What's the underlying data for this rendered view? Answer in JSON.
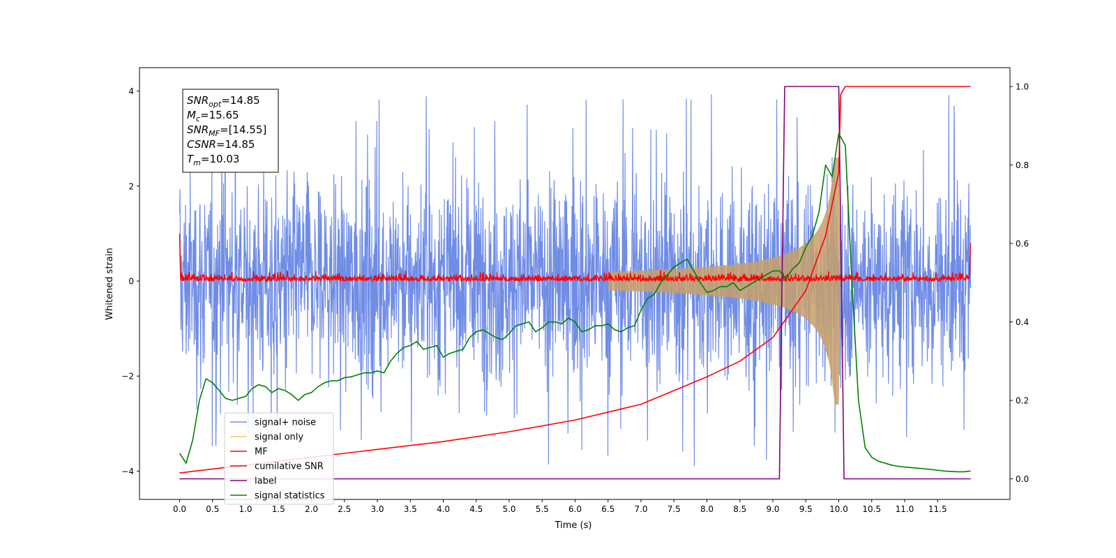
{
  "chart_data": {
    "type": "line",
    "xlabel": "Time (s)",
    "ylabel": "Whitened strain",
    "xlim": [
      -0.6,
      12.6
    ],
    "ylim": [
      -4.55,
      4.5
    ],
    "y2lim": [
      -0.05,
      1.04
    ],
    "xticks": [
      "0.0",
      "0.5",
      "1.0",
      "1.5",
      "2.0",
      "2.5",
      "3.0",
      "3.5",
      "4.0",
      "4.5",
      "5.0",
      "5.5",
      "6.0",
      "6.5",
      "7.0",
      "7.5",
      "8.0",
      "8.5",
      "9.0",
      "9.5",
      "10.0",
      "10.5",
      "11.0",
      "11.5"
    ],
    "yticks_left": [
      "4",
      "2",
      "0",
      "−2",
      "−4"
    ],
    "yticks_right": [
      "1.0",
      "0.8",
      "0.6",
      "0.4",
      "0.2",
      "0.0"
    ],
    "grid": false,
    "legend_position": "lower-left",
    "annotation_box": {
      "lines": [
        {
          "sym": "SNR",
          "sub": "opt",
          "val": "=14.85"
        },
        {
          "sym": "M",
          "sub": "c",
          "val": "=15.65"
        },
        {
          "sym": "SNR",
          "sub": "MF",
          "val": "=[14.55]"
        },
        {
          "sym": "CSNR",
          "sub": "",
          "val": "=14.85"
        },
        {
          "sym": "T",
          "sub": "m",
          "val": "=10.03"
        }
      ]
    },
    "series": [
      {
        "name": "signal+ noise",
        "color": "#6f8ce6",
        "axis": "left",
        "description": "whitened noise, amplitude ~±2.5 with peaks to 4.1"
      },
      {
        "name": "signal only",
        "color": "#f6c56a",
        "axis": "left",
        "chirp_peak_time": 10.0,
        "chirp_peak_amplitude": 2.6
      },
      {
        "name": "MF",
        "color": "#ff0000",
        "axis": "left",
        "description": "matched filter output near 0, spikes at edges"
      },
      {
        "name": "cumilative SNR",
        "color": "#ff0000",
        "axis": "right",
        "x": [
          0.0,
          1.0,
          2.0,
          3.0,
          4.0,
          5.0,
          6.0,
          7.0,
          8.0,
          8.5,
          9.0,
          9.5,
          9.8,
          10.0,
          10.03,
          10.1,
          12.0
        ],
        "y": [
          0.015,
          0.035,
          0.055,
          0.075,
          0.095,
          0.12,
          0.15,
          0.19,
          0.26,
          0.3,
          0.36,
          0.48,
          0.62,
          0.78,
          0.98,
          1.0,
          1.0
        ]
      },
      {
        "name": "label",
        "color": "#800080",
        "axis": "right",
        "x": [
          0.0,
          9.1,
          9.18,
          10.0,
          10.08,
          12.0
        ],
        "y": [
          0.0,
          0.0,
          1.0,
          1.0,
          0.0,
          0.0
        ]
      },
      {
        "name": "signal statistics",
        "color": "#008000",
        "axis": "right",
        "x": [
          0.0,
          0.1,
          0.2,
          0.3,
          0.4,
          0.5,
          0.6,
          0.7,
          0.8,
          0.9,
          1.0,
          1.1,
          1.2,
          1.3,
          1.4,
          1.5,
          1.6,
          1.7,
          1.8,
          1.9,
          2.0,
          2.1,
          2.2,
          2.3,
          2.4,
          2.5,
          2.6,
          2.7,
          2.8,
          2.9,
          3.0,
          3.1,
          3.2,
          3.3,
          3.4,
          3.5,
          3.6,
          3.7,
          3.8,
          3.9,
          4.0,
          4.1,
          4.2,
          4.3,
          4.4,
          4.5,
          4.6,
          4.7,
          4.8,
          4.9,
          5.0,
          5.1,
          5.2,
          5.3,
          5.4,
          5.5,
          5.6,
          5.7,
          5.8,
          5.9,
          6.0,
          6.1,
          6.2,
          6.3,
          6.4,
          6.5,
          6.6,
          6.7,
          6.8,
          6.9,
          7.0,
          7.1,
          7.2,
          7.3,
          7.4,
          7.5,
          7.6,
          7.7,
          7.8,
          7.9,
          8.0,
          8.1,
          8.2,
          8.3,
          8.4,
          8.5,
          8.6,
          8.7,
          8.8,
          8.9,
          9.0,
          9.1,
          9.2,
          9.3,
          9.4,
          9.5,
          9.6,
          9.7,
          9.8,
          9.9,
          10.0,
          10.1,
          10.2,
          10.3,
          10.4,
          10.5,
          10.6,
          10.7,
          10.8,
          10.9,
          11.0,
          11.2,
          11.4,
          11.6,
          11.8,
          11.9,
          12.0
        ],
        "y": [
          0.065,
          0.04,
          0.1,
          0.2,
          0.255,
          0.245,
          0.225,
          0.205,
          0.2,
          0.205,
          0.21,
          0.23,
          0.24,
          0.235,
          0.22,
          0.23,
          0.225,
          0.215,
          0.2,
          0.215,
          0.22,
          0.235,
          0.245,
          0.25,
          0.25,
          0.258,
          0.26,
          0.265,
          0.27,
          0.27,
          0.275,
          0.27,
          0.3,
          0.32,
          0.335,
          0.34,
          0.35,
          0.33,
          0.335,
          0.34,
          0.31,
          0.32,
          0.325,
          0.33,
          0.36,
          0.375,
          0.38,
          0.37,
          0.36,
          0.355,
          0.37,
          0.39,
          0.395,
          0.4,
          0.375,
          0.385,
          0.4,
          0.4,
          0.395,
          0.41,
          0.4,
          0.375,
          0.38,
          0.39,
          0.39,
          0.395,
          0.38,
          0.375,
          0.385,
          0.39,
          0.43,
          0.46,
          0.47,
          0.5,
          0.52,
          0.54,
          0.55,
          0.56,
          0.53,
          0.5,
          0.475,
          0.48,
          0.49,
          0.49,
          0.5,
          0.48,
          0.49,
          0.5,
          0.51,
          0.52,
          0.53,
          0.53,
          0.51,
          0.535,
          0.55,
          0.59,
          0.62,
          0.68,
          0.8,
          0.77,
          0.88,
          0.85,
          0.5,
          0.2,
          0.08,
          0.055,
          0.045,
          0.04,
          0.035,
          0.032,
          0.03,
          0.027,
          0.024,
          0.02,
          0.018,
          0.018,
          0.02
        ]
      }
    ],
    "legend": [
      "signal+ noise",
      "signal only",
      "MF",
      "cumilative SNR",
      "label",
      "signal statistics"
    ]
  }
}
